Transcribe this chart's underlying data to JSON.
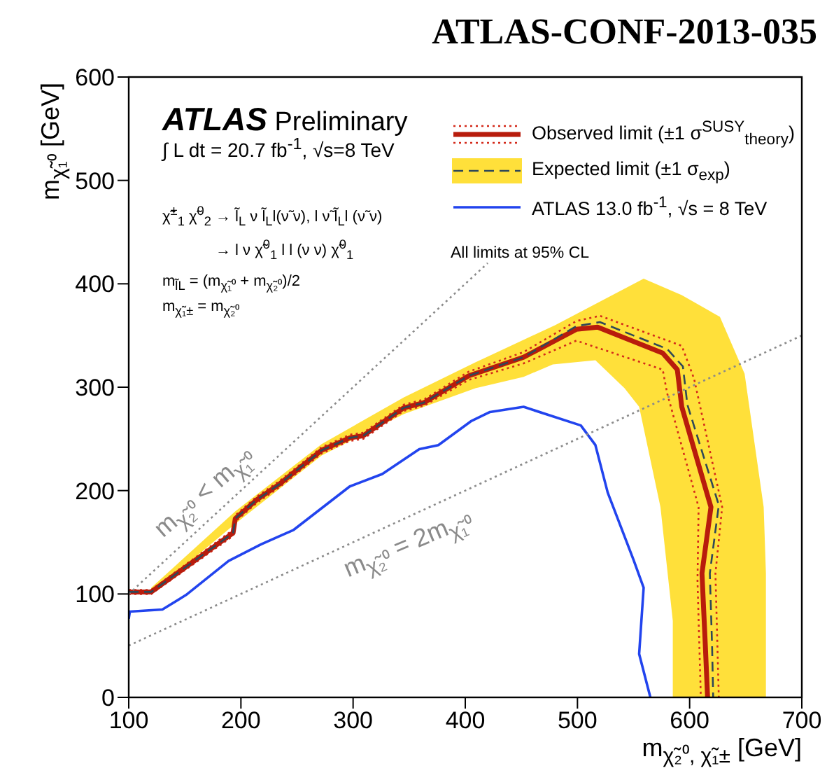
{
  "chart_data": {
    "type": "line",
    "title": "ATLAS-CONF-2013-035",
    "xlabel": "m$_{χ̃₂⁰, χ̃₁±}$ [GeV]",
    "ylabel": "m$_{χ̃₁⁰}$ [GeV]",
    "xlim": [
      100,
      700
    ],
    "xticks": [
      100,
      200,
      300,
      400,
      500,
      600,
      700
    ],
    "ylim": [
      0,
      600
    ],
    "yticks": [
      0,
      100,
      200,
      300,
      400,
      500,
      600
    ],
    "legend": "top right",
    "annotations": [
      "ATLAS Preliminary",
      "∫ L dt = 20.7 fb$^{-1}$, √s=8 TeV",
      "χ̃$^{±}$$_{1}$ χ̃$^{0}$$_{2}$ → l̃$_{L}$ ν l̃$_{L}$l(ν̃ ν), l ν̃ l̃$_{L}$l (ν̃ ν)",
      "→ l ν χ̃$^{0}$$_{1}$ l l (ν ν) χ̃$^{0}$$_{1}$",
      "m$_{l̃L}$ = (m$_{χ̃₁⁰}$ + m$_{χ̃₂⁰}$)/2",
      "m$_{χ̃₁±}$ = m$_{χ̃₂⁰}$",
      "All limits at 95% CL",
      "m$_{χ̃₂⁰}$ < m$_{χ̃₁⁰}$",
      "m$_{χ̃₂⁰}$ = 2m$_{χ̃₁⁰}$"
    ],
    "series": [
      {
        "type": "area",
        "color": "#ffe03a",
        "x": [
          120,
          195,
          214,
          272,
          345,
          409,
          480,
          559,
          593,
          627,
          649,
          666,
          668,
          668,
          585,
          585,
          574,
          555,
          542,
          516,
          478,
          452,
          409,
          345,
          272,
          195,
          120
        ],
        "values": [
          106,
          180,
          196,
          245,
          290,
          324,
          360,
          405,
          389,
          368,
          313,
          184,
          120,
          0,
          0,
          74,
          184,
          281,
          299,
          326,
          322,
          310,
          299,
          274,
          234,
          168,
          100
        ]
      },
      {
        "line_style": "dotted",
        "color": "#d42a1a",
        "x": [
          100,
          120,
          193,
          195,
          214,
          234,
          272,
          297,
          309,
          345,
          363,
          403,
          452,
          499,
          520,
          593,
          604,
          629,
          623,
          626
        ],
        "values": [
          104,
          104,
          162,
          176,
          194,
          209,
          242,
          254,
          256,
          283,
          288,
          315,
          334,
          364,
          369,
          340,
          308,
          184,
          120,
          0
        ]
      },
      {
        "line_style": "dotted",
        "color": "#d42a1a",
        "x": [
          100,
          120,
          193,
          195,
          214,
          234,
          272,
          297,
          309,
          345,
          363,
          403,
          452,
          499,
          576,
          580,
          608,
          607,
          610
        ],
        "values": [
          100,
          100,
          156,
          170,
          188,
          203,
          236,
          248,
          250,
          277,
          282,
          307,
          323,
          345,
          317,
          294,
          184,
          113,
          0
        ]
      },
      {
        "name": "Observed limit (±1 σ$^{SUSY}$$_{theory}$)",
        "line_style": "solid",
        "color": "#b81c0c",
        "x": [
          100,
          120,
          193,
          195,
          214,
          234,
          272,
          297,
          309,
          345,
          363,
          403,
          452,
          499,
          518,
          576,
          589,
          593,
          619,
          611,
          614,
          616
        ],
        "values": [
          102,
          102,
          159,
          173,
          191,
          206,
          239,
          251,
          253,
          280,
          285,
          311,
          329,
          356,
          358,
          333,
          317,
          281,
          184,
          120,
          50,
          0
        ]
      },
      {
        "name": "Expected limit (±1 σ$_{exp}$)",
        "line_style": "dashed",
        "color": "#2f4858",
        "x": [
          100,
          120,
          193,
          195,
          214,
          234,
          272,
          297,
          309,
          345,
          363,
          403,
          452,
          499,
          520,
          580,
          594,
          598,
          626,
          618,
          620,
          621
        ],
        "values": [
          102,
          102,
          159,
          173,
          191,
          206,
          239,
          251,
          253,
          280,
          285,
          311,
          329,
          359,
          363,
          337,
          320,
          283,
          186,
          120,
          50,
          0
        ]
      },
      {
        "name": "ATLAS 13.0 fb$^{-1}$, √s = 8 TeV",
        "line_style": "solid",
        "color": "#2244ee",
        "x": [
          100,
          101,
          130,
          151,
          189,
          218,
          247,
          297,
          326,
          359,
          376,
          405,
          422,
          452,
          503,
          516,
          527,
          550,
          559,
          555,
          565
        ],
        "values": [
          76,
          83,
          85,
          99,
          132,
          148,
          162,
          204,
          216,
          240,
          244,
          267,
          276,
          281,
          263,
          244,
          198,
          133,
          106,
          42,
          0
        ]
      },
      {
        "line_style": "dotted",
        "color": "#8a8a8a",
        "x": [
          100,
          420
        ],
        "values": [
          100,
          420
        ]
      },
      {
        "line_style": "dotted",
        "color": "#8a8a8a",
        "x": [
          100,
          700
        ],
        "values": [
          50,
          350
        ]
      }
    ]
  }
}
